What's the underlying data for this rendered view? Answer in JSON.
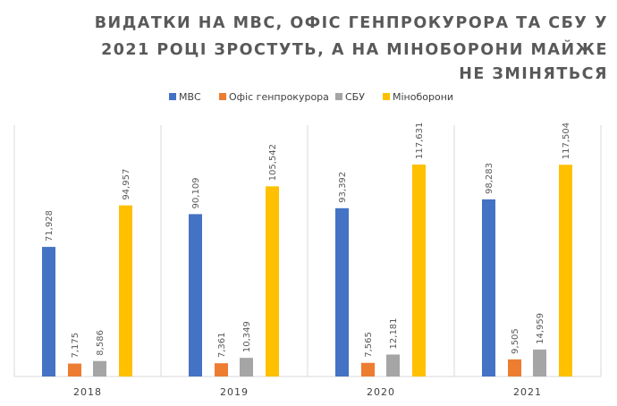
{
  "chart_data": {
    "type": "bar",
    "title_lines": [
      "ВИДАТКИ НА МВС, ОФІС ГЕНПРОКУРОРА ТА СБУ У",
      "2021 РОЦІ ЗРОСТУТЬ, А НА МІНОБОРОНИ МАЙЖЕ",
      "НЕ ЗМІНЯТЬСЯ"
    ],
    "categories": [
      "2018",
      "2019",
      "2020",
      "2021"
    ],
    "series": [
      {
        "name": "МВС",
        "color": "#4472C4",
        "values": [
          71928,
          90109,
          93392,
          98283
        ],
        "labels": [
          "71,928",
          "90,109",
          "93,392",
          "98,283"
        ]
      },
      {
        "name": "Офіс генпрокурора",
        "color": "#ED7D31",
        "values": [
          7175,
          7361,
          7565,
          9505
        ],
        "labels": [
          "7,175",
          "7,361",
          "7,565",
          "9,505"
        ]
      },
      {
        "name": "СБУ",
        "color": "#A5A5A5",
        "values": [
          8586,
          10349,
          12181,
          14959
        ],
        "labels": [
          "8,586",
          "10,349",
          "12,181",
          "14,959"
        ]
      },
      {
        "name": "Міноборони",
        "color": "#FFC000",
        "values": [
          94957,
          105542,
          117631,
          117504
        ],
        "labels": [
          "94,957",
          "105,542",
          "117,631",
          "117,504"
        ]
      }
    ],
    "ylim": [
      0,
      140000
    ],
    "grid": false,
    "legend_position": "top"
  }
}
